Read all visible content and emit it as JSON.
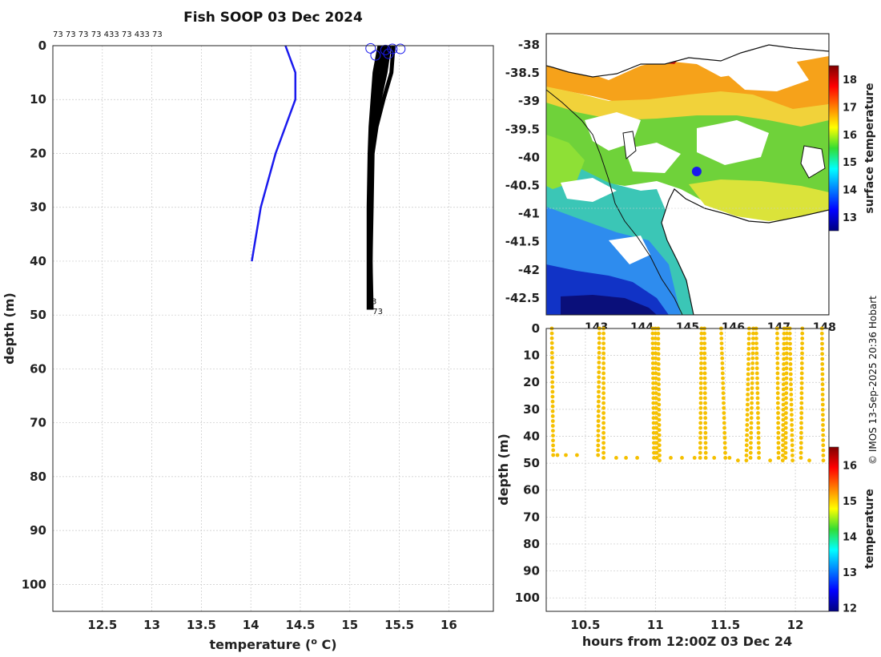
{
  "figure": {
    "title": "Fish SOOP 03 Dec 2024",
    "copyright": "© IMOS 13-Sep-2025 20:36 Hobart",
    "top_labels": "73 73 73 73 433 73 433 73"
  },
  "colors": {
    "model_profile": "#1a1aee",
    "obs_profile": "#000000",
    "marker": "#1a1aee",
    "scatter": "#f5c000",
    "grid": "#c8c8c8",
    "land": "#ffffff"
  },
  "chart_data": [
    {
      "id": "profile",
      "type": "line",
      "title": "Fish SOOP 03 Dec 2024",
      "xlabel": "temperature (o C)",
      "ylabel": "depth (m)",
      "xlim": [
        12.0,
        16.45
      ],
      "ylim": [
        105,
        0
      ],
      "xticks": [
        12.5,
        13,
        13.5,
        14,
        14.5,
        15,
        15.5,
        16
      ],
      "yticks": [
        0,
        10,
        20,
        30,
        40,
        50,
        60,
        70,
        80,
        90,
        100
      ],
      "model_profile": {
        "name": "climatology",
        "x": [
          14.35,
          14.45,
          14.45,
          14.25,
          14.1,
          14.01
        ],
        "y": [
          0,
          5,
          10,
          20,
          30,
          40
        ]
      },
      "obs_profiles": [
        {
          "x": [
            15.33,
            15.28,
            15.25,
            15.22,
            15.21,
            15.2,
            15.2,
            15.2
          ],
          "y": [
            0,
            5,
            10,
            15,
            20,
            30,
            40,
            49
          ]
        },
        {
          "x": [
            15.36,
            15.32,
            15.27,
            15.23,
            15.21,
            15.21,
            15.2,
            15.2
          ],
          "y": [
            0,
            5,
            10,
            15,
            20,
            30,
            40,
            49
          ]
        },
        {
          "x": [
            15.4,
            15.36,
            15.3,
            15.24,
            15.22,
            15.21,
            15.21,
            15.21
          ],
          "y": [
            0,
            5,
            10,
            15,
            20,
            30,
            40,
            49
          ]
        },
        {
          "x": [
            15.44,
            15.42,
            15.34,
            15.27,
            15.23,
            15.22,
            15.21,
            15.22
          ],
          "y": [
            0,
            5,
            10,
            15,
            20,
            30,
            40,
            49
          ]
        },
        {
          "x": [
            15.3,
            15.25,
            15.23,
            15.21,
            15.2,
            15.19,
            15.19,
            15.19
          ],
          "y": [
            0,
            5,
            10,
            15,
            20,
            30,
            40,
            49
          ]
        },
        {
          "x": [
            15.38,
            15.35,
            15.29,
            15.25,
            15.22,
            15.2,
            15.2,
            15.21
          ],
          "y": [
            0,
            5,
            10,
            15,
            20,
            30,
            40,
            49
          ]
        }
      ],
      "surface_markers": {
        "x": [
          15.21,
          15.26,
          15.36,
          15.39,
          15.43,
          15.51
        ],
        "y": [
          0.5,
          1.8,
          0.8,
          1.5,
          0.6,
          0.6
        ]
      },
      "bottom_labels": [
        "3",
        "73"
      ]
    },
    {
      "id": "map",
      "type": "heatmap",
      "title": "",
      "xlabel": "",
      "ylabel": "",
      "xlim": [
        141.9,
        148.1
      ],
      "ylim": [
        -42.8,
        -37.8
      ],
      "xticks": [
        143,
        144,
        145,
        146,
        147,
        148
      ],
      "xtick_labels": [
        "143",
        "144",
        "145",
        "146",
        "147",
        "148"
      ],
      "yticks": [
        -38,
        -38.5,
        -39,
        -39.5,
        -40,
        -40.5,
        -41,
        -41.5,
        -42,
        -42.5
      ],
      "colorbar": {
        "label": "surface temperature",
        "range": [
          12.5,
          18.5
        ],
        "ticks": [
          13,
          14,
          15,
          16,
          17,
          18
        ]
      },
      "position_marker": {
        "lon": 145.2,
        "lat": -40.25
      }
    },
    {
      "id": "timeseries",
      "type": "scatter",
      "title": "",
      "xlabel": "hours from 12:00Z 03 Dec 24",
      "ylabel": "depth (m)",
      "xlim": [
        10.22,
        12.24
      ],
      "ylim": [
        105,
        0
      ],
      "xticks": [
        10.5,
        11,
        11.5,
        12
      ],
      "yticks": [
        0,
        10,
        20,
        30,
        40,
        50,
        60,
        70,
        80,
        90,
        100
      ],
      "colorbar": {
        "label": "temperature",
        "range": [
          11.9,
          16.5
        ],
        "ticks": [
          12,
          13,
          14,
          15,
          16
        ]
      },
      "casts": [
        {
          "t0": 10.26,
          "t1": 10.27,
          "bottom": 47
        },
        {
          "t0": 10.6,
          "t1": 10.59,
          "bottom": 47
        },
        {
          "t0": 10.63,
          "t1": 10.63,
          "bottom": 48
        },
        {
          "t0": 10.98,
          "t1": 10.99,
          "bottom": 48
        },
        {
          "t0": 11.0,
          "t1": 11.01,
          "bottom": 48
        },
        {
          "t0": 11.02,
          "t1": 11.03,
          "bottom": 49
        },
        {
          "t0": 11.33,
          "t1": 11.32,
          "bottom": 48
        },
        {
          "t0": 11.35,
          "t1": 11.36,
          "bottom": 48
        },
        {
          "t0": 11.47,
          "t1": 11.5,
          "bottom": 48
        },
        {
          "t0": 11.67,
          "t1": 11.65,
          "bottom": 49
        },
        {
          "t0": 11.7,
          "t1": 11.68,
          "bottom": 48
        },
        {
          "t0": 11.72,
          "t1": 11.74,
          "bottom": 48
        },
        {
          "t0": 11.87,
          "t1": 11.88,
          "bottom": 48
        },
        {
          "t0": 11.92,
          "t1": 11.91,
          "bottom": 49
        },
        {
          "t0": 11.94,
          "t1": 11.93,
          "bottom": 48
        },
        {
          "t0": 11.96,
          "t1": 11.98,
          "bottom": 49
        },
        {
          "t0": 12.05,
          "t1": 12.04,
          "bottom": 48
        },
        {
          "t0": 12.19,
          "t1": 12.2,
          "bottom": 49
        }
      ],
      "bottom_points": {
        "t": [
          10.3,
          10.36,
          10.44,
          10.72,
          10.79,
          10.87,
          11.11,
          11.19,
          11.28,
          11.42,
          11.53,
          11.59,
          11.82,
          12.1
        ],
        "depth": [
          47,
          47,
          47,
          48,
          48,
          48,
          48,
          48,
          48,
          48,
          48,
          49,
          49,
          49
        ]
      }
    }
  ]
}
